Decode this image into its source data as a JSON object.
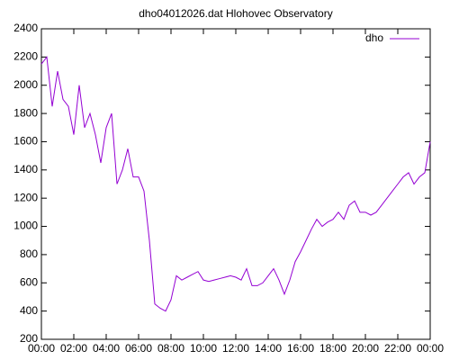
{
  "chart_data": {
    "type": "line",
    "title": "dho04012026.dat Hlohovec Observatory",
    "x": [
      0,
      20,
      40,
      60,
      80,
      100,
      120,
      140,
      160,
      180,
      200,
      220,
      240,
      260,
      280,
      300,
      320,
      340,
      360,
      380,
      400,
      420,
      440,
      460,
      480,
      500,
      520,
      540,
      560,
      580,
      600,
      620,
      640,
      660,
      680,
      700,
      720,
      740,
      760,
      780,
      800,
      820,
      840,
      860,
      880,
      900,
      920,
      940,
      960,
      980,
      1000,
      1020,
      1040,
      1060,
      1080,
      1100,
      1120,
      1140,
      1160,
      1180,
      1200,
      1220,
      1240,
      1260,
      1280,
      1300,
      1320,
      1340,
      1360,
      1380,
      1400,
      1420,
      1440
    ],
    "series": [
      {
        "name": "dho",
        "color": "#9400d3",
        "values": [
          2150,
          2200,
          1850,
          2100,
          1900,
          1850,
          1650,
          2000,
          1700,
          1800,
          1650,
          1450,
          1700,
          1800,
          1300,
          1400,
          1550,
          1350,
          1350,
          1250,
          900,
          450,
          420,
          400,
          480,
          650,
          620,
          640,
          660,
          680,
          620,
          610,
          620,
          630,
          640,
          650,
          640,
          620,
          700,
          580,
          580,
          600,
          650,
          700,
          620,
          520,
          620,
          750,
          820,
          900,
          980,
          1050,
          1000,
          1030,
          1050,
          1100,
          1050,
          1150,
          1180,
          1100,
          1100,
          1080,
          1100,
          1150,
          1200,
          1250,
          1300,
          1350,
          1380,
          1300,
          1350,
          1380,
          1600
        ]
      }
    ],
    "xlim": [
      0,
      1440
    ],
    "xticks": [
      {
        "value": 0,
        "label": "00:00"
      },
      {
        "value": 120,
        "label": "02:00"
      },
      {
        "value": 240,
        "label": "04:00"
      },
      {
        "value": 360,
        "label": "06:00"
      },
      {
        "value": 480,
        "label": "08:00"
      },
      {
        "value": 600,
        "label": "10:00"
      },
      {
        "value": 720,
        "label": "12:00"
      },
      {
        "value": 840,
        "label": "14:00"
      },
      {
        "value": 960,
        "label": "16:00"
      },
      {
        "value": 1080,
        "label": "18:00"
      },
      {
        "value": 1200,
        "label": "20:00"
      },
      {
        "value": 1320,
        "label": "22:00"
      },
      {
        "value": 1440,
        "label": "00:00"
      }
    ],
    "ylim": [
      200,
      2400
    ],
    "yticks": [
      200,
      400,
      600,
      800,
      1000,
      1200,
      1400,
      1600,
      1800,
      2000,
      2200,
      2400
    ],
    "legend": "top-right"
  }
}
